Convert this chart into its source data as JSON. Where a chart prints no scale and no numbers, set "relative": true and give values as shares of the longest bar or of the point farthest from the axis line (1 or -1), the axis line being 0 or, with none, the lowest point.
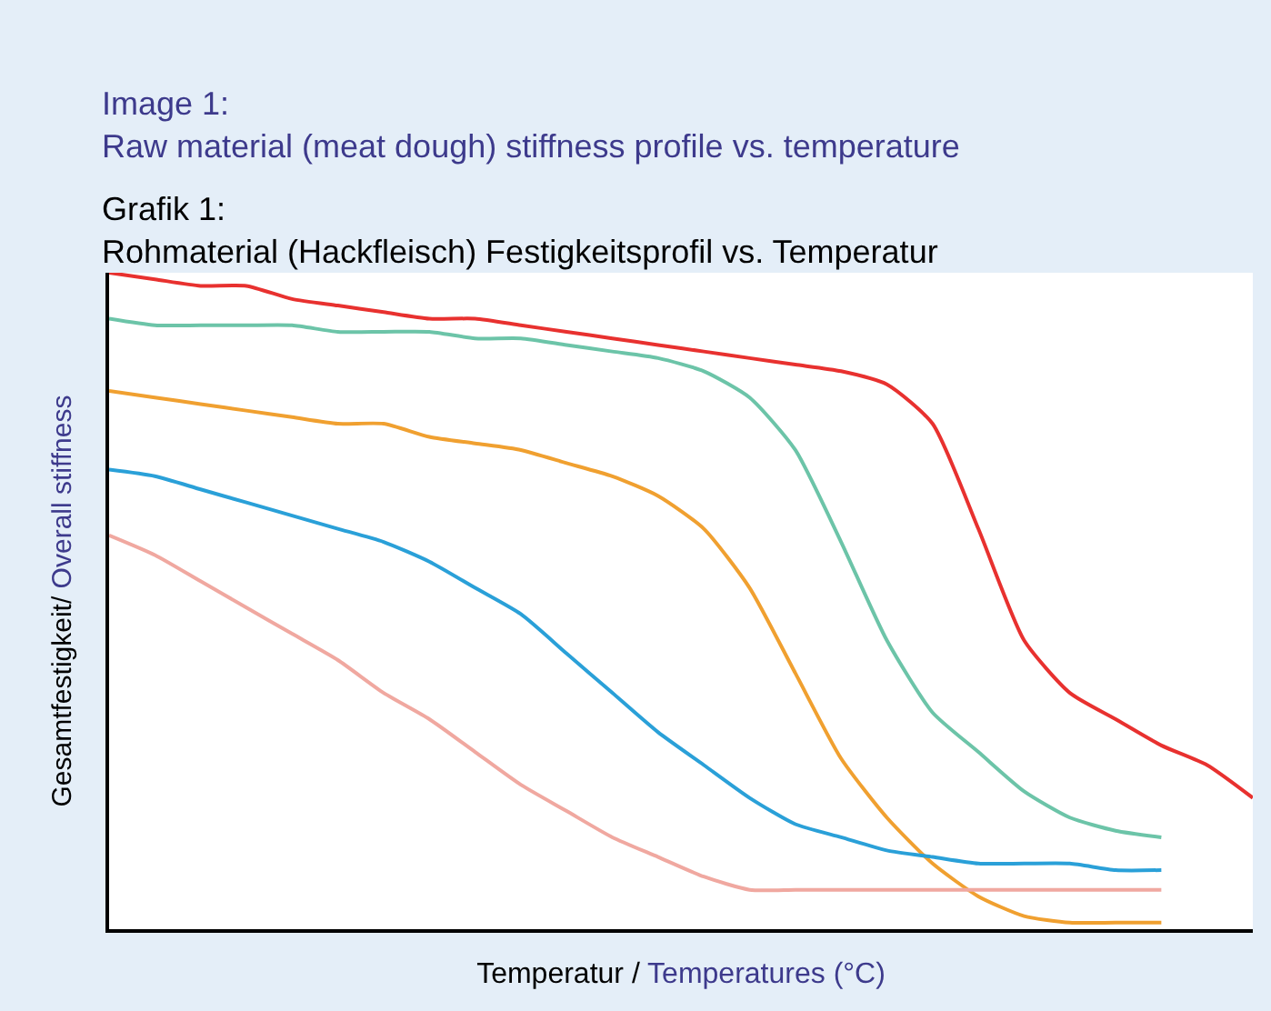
{
  "chart_data": {
    "type": "line",
    "relative": true,
    "title": "Image 1:\nRaw material (meat dough) stiffness profile vs. temperature",
    "subtitle": "Grafik 1:\nRohmaterial (Hackfleisch) Festigkeitsprofil vs. Temperatur",
    "xlabel": "Temperatur / Temperatures (°C)",
    "ylabel": "Gesamtfestigkeit/ Overall stiffness",
    "marker": "none",
    "line_style": "solid",
    "categories": [
      null,
      null,
      null,
      null,
      null,
      null,
      null,
      null,
      null,
      null,
      null,
      null,
      null,
      null,
      null,
      null,
      null,
      null,
      null,
      null,
      null,
      null,
      null,
      null,
      null,
      null
    ],
    "series": [
      {
        "color": "#e8312f",
        "values": [
          1.0,
          0.99,
          0.98,
          0.98,
          0.96,
          0.95,
          0.94,
          0.93,
          0.93,
          0.92,
          0.91,
          0.9,
          0.89,
          0.88,
          0.87,
          0.86,
          0.85,
          0.83,
          0.77,
          0.61,
          0.44,
          0.36,
          0.32,
          0.28,
          0.25,
          0.2
        ]
      },
      {
        "color": "#6cc4a8",
        "values": [
          0.93,
          0.92,
          0.92,
          0.92,
          0.92,
          0.91,
          0.91,
          0.91,
          0.9,
          0.9,
          0.89,
          0.88,
          0.87,
          0.85,
          0.81,
          0.73,
          0.59,
          0.44,
          0.33,
          0.27,
          0.21,
          0.17,
          0.15,
          0.14,
          null,
          null
        ]
      },
      {
        "color": "#f0a030",
        "values": [
          0.82,
          0.81,
          0.8,
          0.79,
          0.78,
          0.77,
          0.77,
          0.75,
          0.74,
          0.73,
          0.71,
          0.69,
          0.66,
          0.61,
          0.52,
          0.39,
          0.26,
          0.17,
          0.1,
          0.05,
          0.02,
          0.01,
          0.01,
          0.01,
          null,
          null
        ]
      },
      {
        "color": "#2aa0d8",
        "values": [
          0.7,
          0.69,
          0.67,
          0.65,
          0.63,
          0.61,
          0.59,
          0.56,
          0.52,
          0.48,
          0.42,
          0.36,
          0.3,
          0.25,
          0.2,
          0.16,
          0.14,
          0.12,
          0.11,
          0.1,
          0.1,
          0.1,
          0.09,
          0.09,
          null,
          null
        ]
      },
      {
        "color": "#f0a8a0",
        "values": [
          0.6,
          0.57,
          0.53,
          0.49,
          0.45,
          0.41,
          0.36,
          0.32,
          0.27,
          0.22,
          0.18,
          0.14,
          0.11,
          0.08,
          0.06,
          0.06,
          0.06,
          0.06,
          0.06,
          0.06,
          0.06,
          0.06,
          0.06,
          0.06,
          null,
          null
        ]
      }
    ]
  }
}
